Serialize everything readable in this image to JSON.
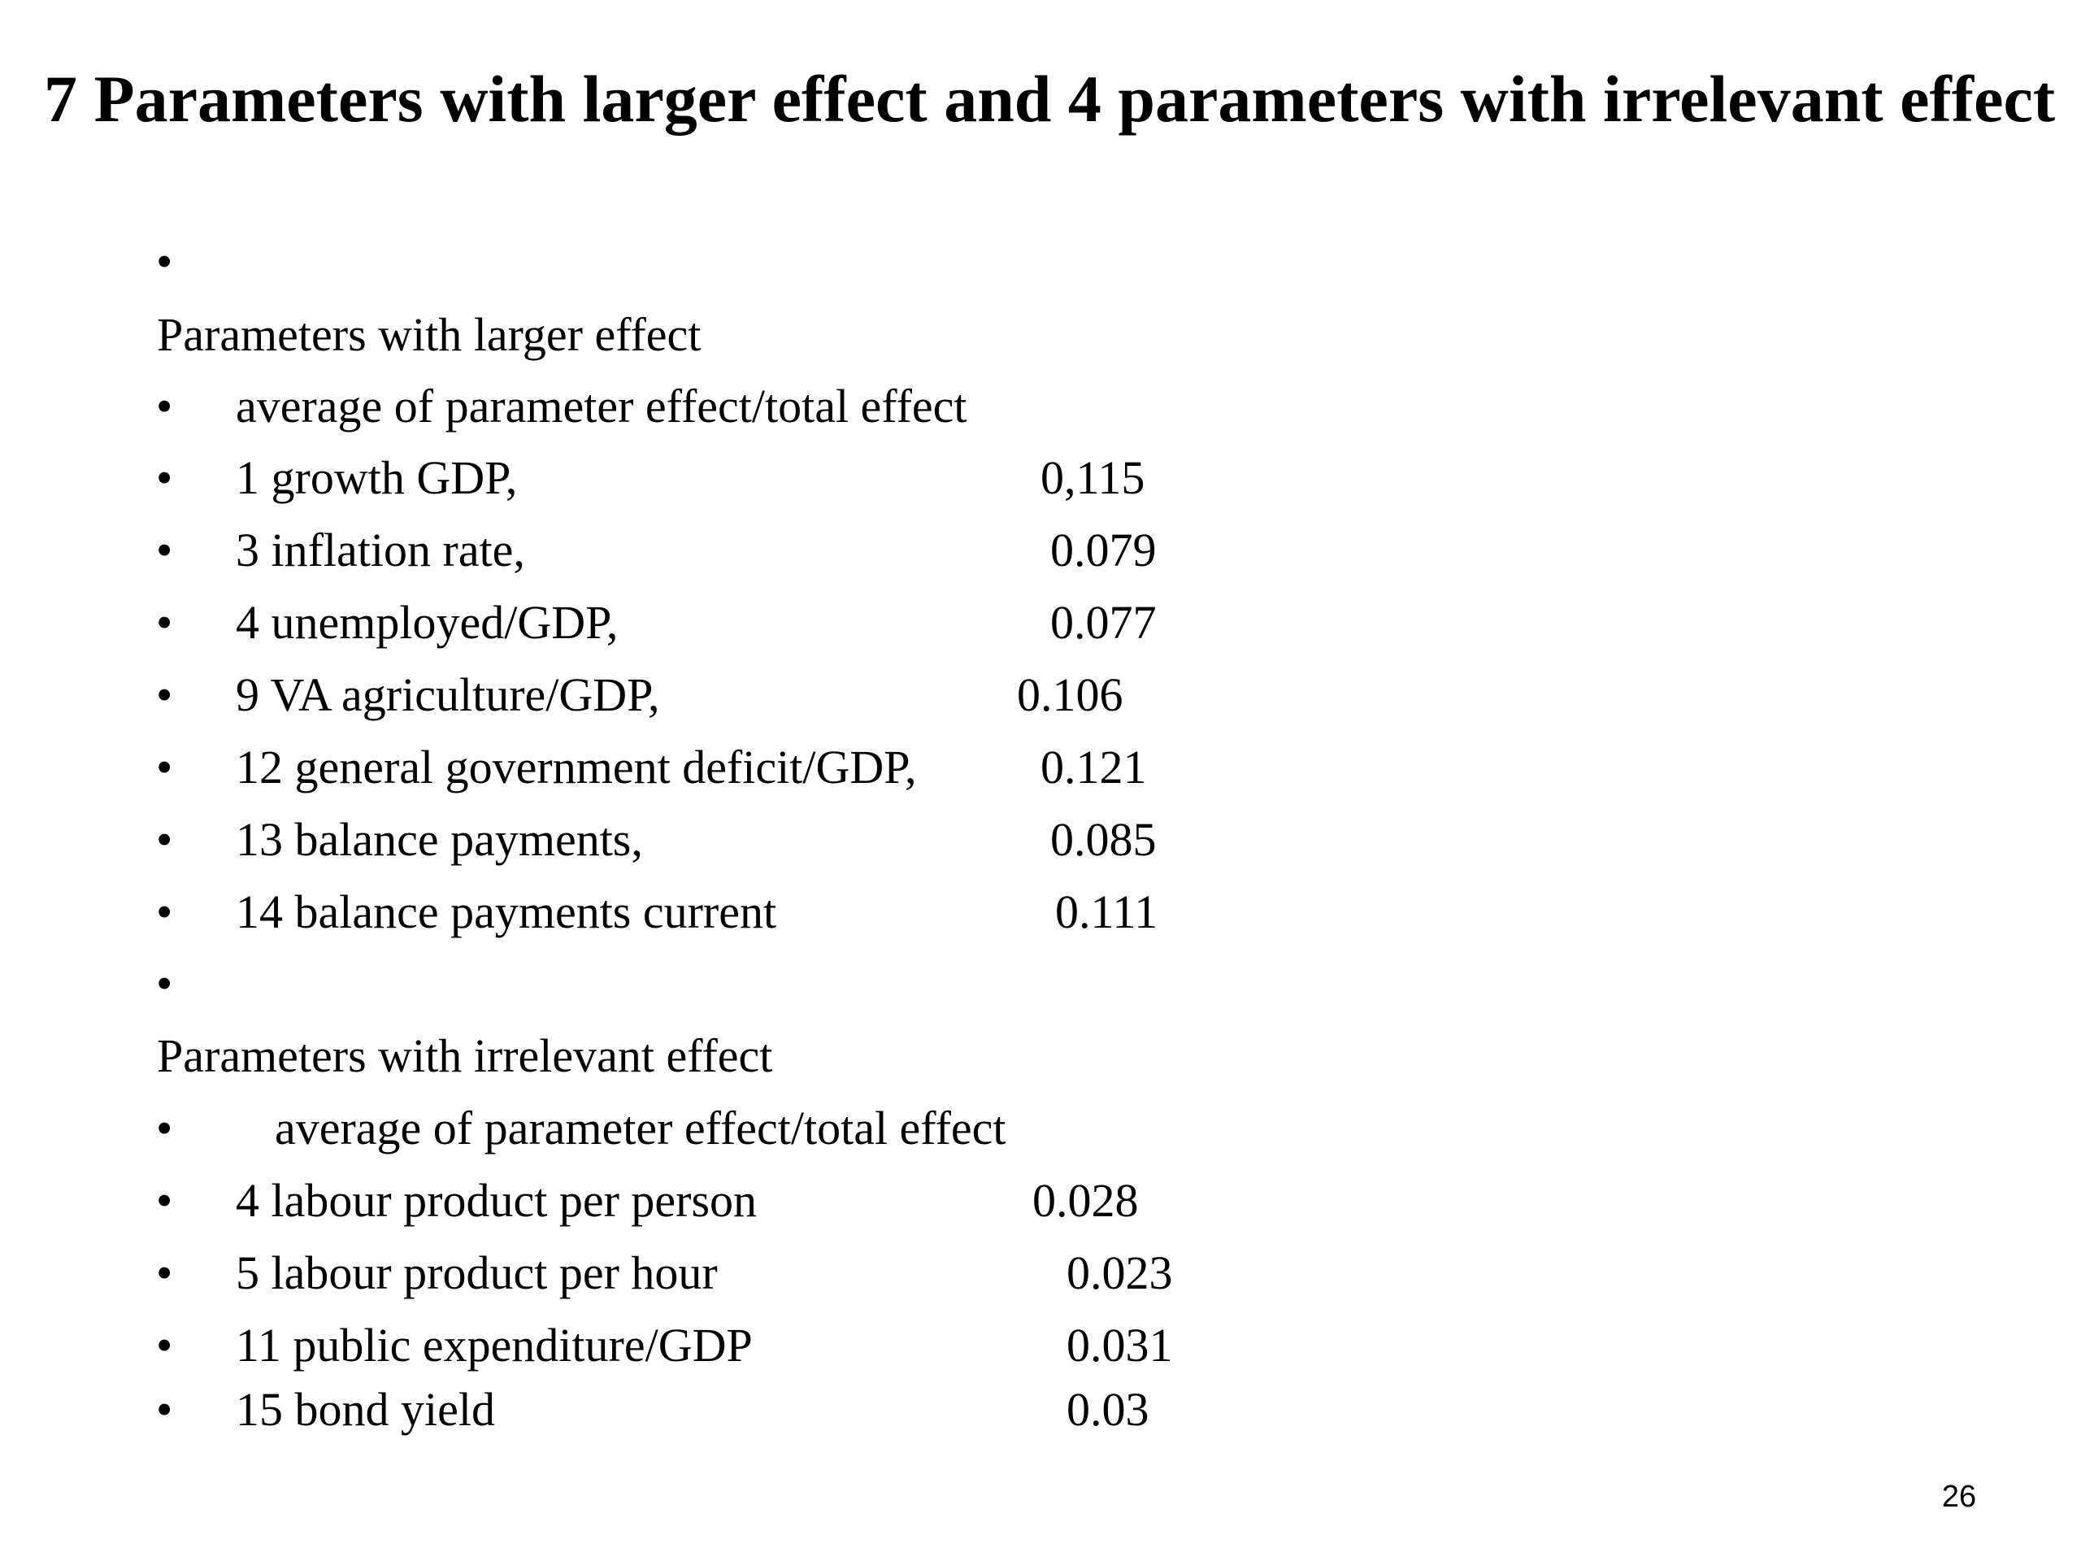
{
  "slide": {
    "title": "7 Parameters with larger effect and 4 parameters with irrelevant effect",
    "page_number": "26"
  },
  "larger_effect": {
    "heading": "Parameters with larger effect",
    "subheading": "average of parameter effect/total effect",
    "items": [
      {
        "label": "1  growth GDP,",
        "value": "0,115"
      },
      {
        "label": "3  inflation rate,",
        "value": "0.079"
      },
      {
        "label": "4  unemployed/GDP,",
        "value": "0.077"
      },
      {
        "label": "9 VA agriculture/GDP,",
        "value": "0.106"
      },
      {
        "label": "12 general government deficit/GDP,",
        "value": "0.121"
      },
      {
        "label": "13 balance payments,",
        "value": "0.085"
      },
      {
        "label": "14 balance payments current",
        "value": "0.111"
      }
    ]
  },
  "irrelevant_effect": {
    "heading": "Parameters with irrelevant effect",
    "subheading": "average of parameter effect/total effect",
    "items": [
      {
        "label": "4  labour product per person",
        "value": "0.028"
      },
      {
        "label": "5  labour product per hour",
        "value": "0.023"
      },
      {
        "label": "11 public expenditure/GDP",
        "value": "0.031"
      },
      {
        "label": "15 bond yield",
        "value": "0.03"
      }
    ]
  }
}
